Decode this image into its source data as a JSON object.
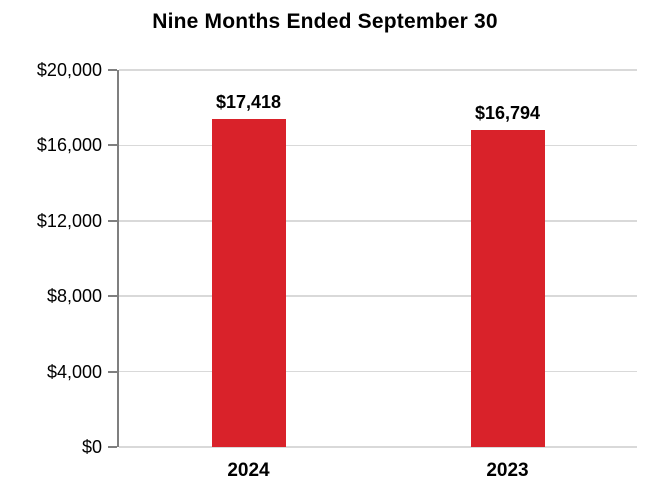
{
  "chart_data": {
    "type": "bar",
    "title": "Nine Months Ended September 30",
    "categories": [
      "2024",
      "2023"
    ],
    "values": [
      17418,
      16794
    ],
    "value_labels": [
      "$17,418",
      "$16,794"
    ],
    "ylim": [
      0,
      20000
    ],
    "yticks": [
      0,
      4000,
      8000,
      12000,
      16000,
      20000
    ],
    "ytick_labels": [
      "$0",
      "$4,000",
      "$8,000",
      "$12,000",
      "$16,000",
      "$20,000"
    ],
    "xlabel": "",
    "ylabel": "",
    "grid": true,
    "legend": "none",
    "colors": {
      "bar": "#D9222A",
      "gridline": "#D9D9D9",
      "axis": "#7F7F7F",
      "text": "#000000",
      "background": "#FFFFFF"
    }
  }
}
